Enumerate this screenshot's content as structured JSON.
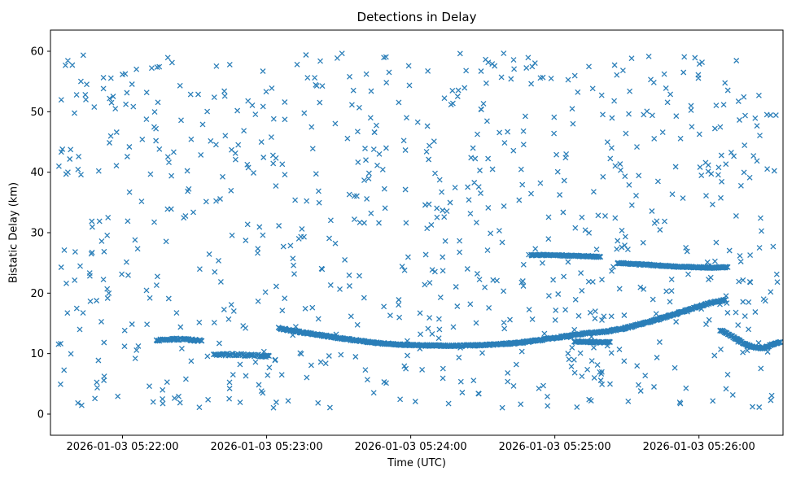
{
  "chart_data": {
    "type": "scatter",
    "title": "Detections in Delay",
    "xlabel": "Time (UTC)",
    "ylabel": "Bistatic Delay (km)",
    "marker": "x",
    "marker_color": "#1f77b4",
    "marker_half_size_px": 3,
    "legend": "none",
    "grid": false,
    "x_axis": {
      "start": "2026-01-03 05:21:30",
      "end": "2026-01-03 05:26:35",
      "t_min": 0,
      "t_max": 305,
      "ticks": [
        {
          "t": 30,
          "label": "2026-01-03 05:22:00"
        },
        {
          "t": 90,
          "label": "2026-01-03 05:23:00"
        },
        {
          "t": 150,
          "label": "2026-01-03 05:24:00"
        },
        {
          "t": 210,
          "label": "2026-01-03 05:25:00"
        },
        {
          "t": 270,
          "label": "2026-01-03 05:26:00"
        }
      ]
    },
    "y_axis": {
      "min": -3.5,
      "max": 63.5,
      "ticks": [
        0,
        10,
        20,
        30,
        40,
        50,
        60
      ]
    },
    "background_noise": {
      "count": 800,
      "t_range": [
        3,
        303
      ],
      "y_range": [
        1.0,
        59.7
      ],
      "seed": 12345
    },
    "tracks": [
      {
        "name": "target-track-main",
        "points_per_second": 4,
        "jitter": 0.13,
        "anchors": [
          [
            95,
            14.2
          ],
          [
            105,
            13.5
          ],
          [
            115,
            12.9
          ],
          [
            125,
            12.3
          ],
          [
            135,
            11.8
          ],
          [
            145,
            11.5
          ],
          [
            155,
            11.35
          ],
          [
            170,
            11.3
          ],
          [
            185,
            11.5
          ],
          [
            195,
            11.8
          ],
          [
            205,
            12.3
          ],
          [
            215,
            12.9
          ],
          [
            222,
            13.3
          ],
          [
            230,
            13.6
          ],
          [
            238,
            14.1
          ],
          [
            246,
            14.9
          ],
          [
            254,
            15.8
          ],
          [
            262,
            16.8
          ],
          [
            270,
            17.8
          ],
          [
            276,
            18.5
          ],
          [
            281,
            18.9
          ]
        ]
      },
      {
        "name": "target-track-descending-right",
        "points_per_second": 4,
        "jitter": 0.12,
        "anchors": [
          [
            279,
            13.9
          ],
          [
            284,
            12.8
          ],
          [
            289,
            11.6
          ],
          [
            293,
            11.0
          ],
          [
            297,
            10.9
          ],
          [
            301,
            11.6
          ],
          [
            304,
            11.9
          ]
        ]
      },
      {
        "name": "target-track-26km-a",
        "points_per_second": 4,
        "jitter": 0.1,
        "anchors": [
          [
            200,
            26.3
          ],
          [
            208,
            26.3
          ],
          [
            216,
            26.2
          ],
          [
            224,
            26.1
          ],
          [
            229,
            26.0
          ]
        ]
      },
      {
        "name": "target-track-26km-b",
        "points_per_second": 4,
        "jitter": 0.1,
        "anchors": [
          [
            236,
            25.0
          ],
          [
            244,
            24.8
          ],
          [
            252,
            24.6
          ],
          [
            260,
            24.4
          ],
          [
            268,
            24.3
          ],
          [
            276,
            24.2
          ],
          [
            282,
            24.3
          ]
        ]
      },
      {
        "name": "target-track-12km-early",
        "points_per_second": 3,
        "jitter": 0.15,
        "anchors": [
          [
            44,
            12.2
          ],
          [
            52,
            12.4
          ],
          [
            58,
            12.3
          ],
          [
            63,
            12.1
          ]
        ]
      },
      {
        "name": "target-track-10km-early",
        "points_per_second": 2.5,
        "jitter": 0.2,
        "anchors": [
          [
            68,
            9.7
          ],
          [
            76,
            9.9
          ],
          [
            84,
            9.7
          ],
          [
            91,
            9.6
          ]
        ]
      },
      {
        "name": "target-track-12km-mid",
        "points_per_second": 4,
        "jitter": 0.12,
        "anchors": [
          [
            218,
            12.0
          ],
          [
            226,
            11.9
          ],
          [
            233,
            11.9
          ]
        ]
      }
    ]
  }
}
